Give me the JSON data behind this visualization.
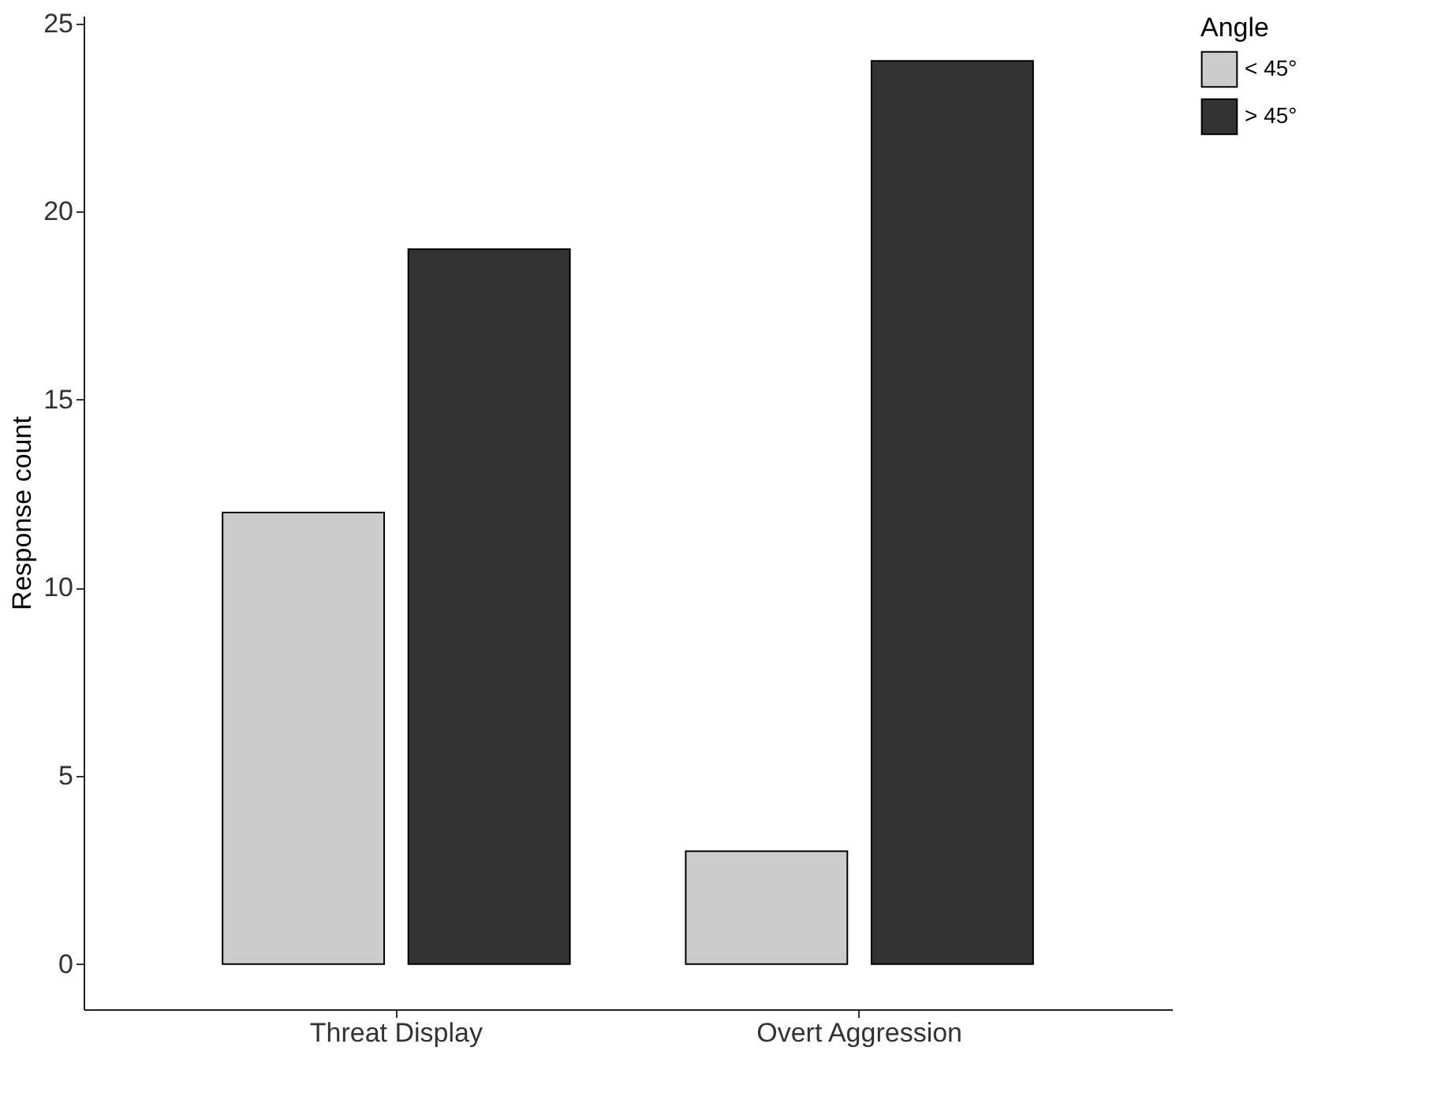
{
  "chart_data": {
    "type": "bar",
    "ylabel": "Response count",
    "legend_title": "Angle",
    "legend": "right",
    "categories": [
      "Threat Display",
      "Overt Aggression"
    ],
    "series": [
      {
        "name": "< 45°",
        "color": "#cccccc",
        "values": [
          12,
          3
        ]
      },
      {
        "name": "> 45°",
        "color": "#333333",
        "values": [
          19,
          24
        ]
      }
    ],
    "ylim": [
      -1.2,
      25.2
    ],
    "yticks": [
      0,
      5,
      10,
      15,
      20,
      25
    ],
    "grid": false
  }
}
